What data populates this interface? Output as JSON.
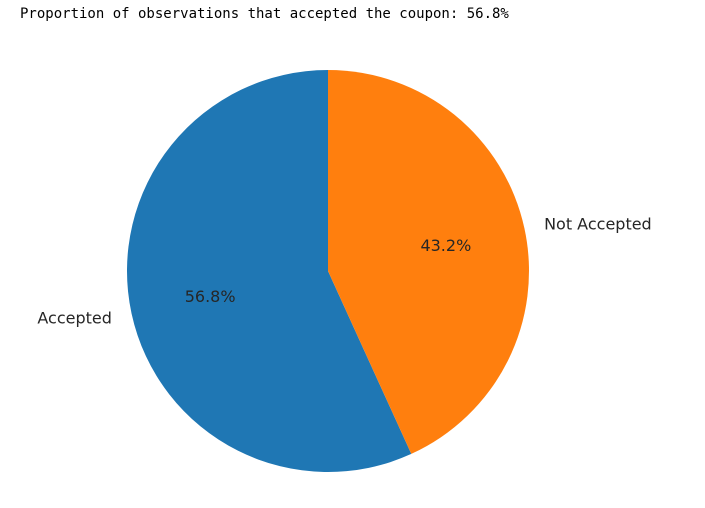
{
  "output_text": "Proportion of observations that accepted the coupon: 56.8%",
  "chart_data": {
    "type": "pie",
    "categories": [
      "Accepted",
      "Not Accepted"
    ],
    "values": [
      56.8,
      43.2
    ],
    "percent_labels": [
      "56.8%",
      "43.2%"
    ],
    "colors": [
      "#1f77b4",
      "#ff7f0e"
    ],
    "start_angle_deg": 90,
    "direction": "counterclockwise",
    "title": "",
    "legend": "none"
  }
}
